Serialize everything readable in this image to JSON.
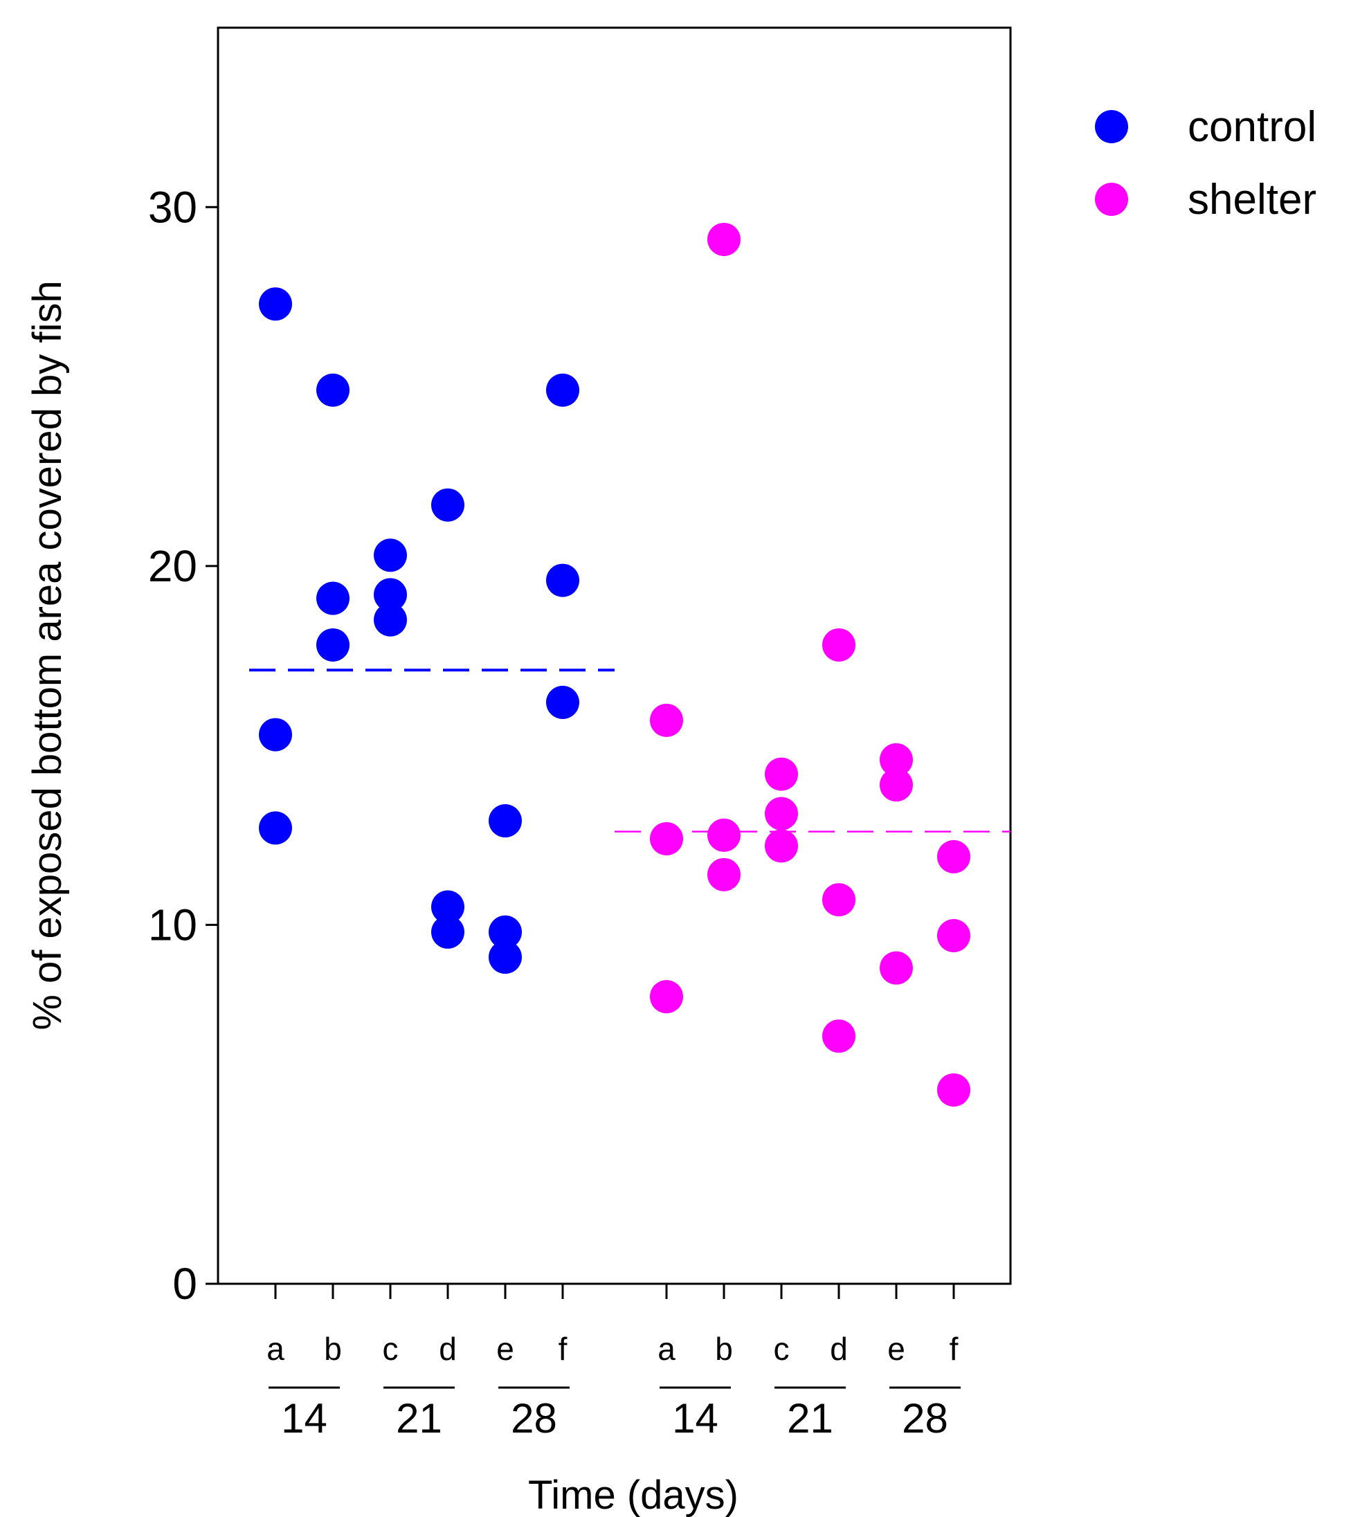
{
  "chart_data": {
    "type": "scatter",
    "ylabel": "% of exposed bottom area covered by fish",
    "xlabel": "Time (days)",
    "ylim": [
      0,
      35
    ],
    "yticks": [
      0,
      10,
      20,
      30
    ],
    "grid": false,
    "legend": {
      "placement": "top-right, outside plot",
      "entries": [
        {
          "label": "control",
          "color": "#0000ff"
        },
        {
          "label": "shelter",
          "color": "#ff00ff"
        }
      ]
    },
    "categories": [
      {
        "label": "a",
        "treatment": "control"
      },
      {
        "label": "b",
        "treatment": "control"
      },
      {
        "label": "c",
        "treatment": "control"
      },
      {
        "label": "d",
        "treatment": "control"
      },
      {
        "label": "e",
        "treatment": "control"
      },
      {
        "label": "f",
        "treatment": "control"
      },
      {
        "label": "a",
        "treatment": "shelter"
      },
      {
        "label": "b",
        "treatment": "shelter"
      },
      {
        "label": "c",
        "treatment": "shelter"
      },
      {
        "label": "d",
        "treatment": "shelter"
      },
      {
        "label": "e",
        "treatment": "shelter"
      },
      {
        "label": "f",
        "treatment": "shelter"
      }
    ],
    "time_groups": [
      {
        "label": "14",
        "category_indices": [
          0,
          1
        ]
      },
      {
        "label": "21",
        "category_indices": [
          2,
          3
        ]
      },
      {
        "label": "28",
        "category_indices": [
          4,
          5
        ]
      },
      {
        "label": "14",
        "category_indices": [
          6,
          7
        ]
      },
      {
        "label": "21",
        "category_indices": [
          8,
          9
        ]
      },
      {
        "label": "28",
        "category_indices": [
          10,
          11
        ]
      }
    ],
    "series": [
      {
        "name": "control",
        "color": "#0000ff",
        "mean": 17.1,
        "points": [
          {
            "category": 0,
            "value": 27.3
          },
          {
            "category": 0,
            "value": 15.3
          },
          {
            "category": 0,
            "value": 12.7
          },
          {
            "category": 1,
            "value": 24.9
          },
          {
            "category": 1,
            "value": 19.1
          },
          {
            "category": 1,
            "value": 17.8
          },
          {
            "category": 2,
            "value": 20.3
          },
          {
            "category": 2,
            "value": 19.2
          },
          {
            "category": 2,
            "value": 18.5
          },
          {
            "category": 3,
            "value": 21.7
          },
          {
            "category": 3,
            "value": 10.5
          },
          {
            "category": 3,
            "value": 9.8
          },
          {
            "category": 4,
            "value": 12.9
          },
          {
            "category": 4,
            "value": 9.8
          },
          {
            "category": 4,
            "value": 9.1
          },
          {
            "category": 5,
            "value": 24.9
          },
          {
            "category": 5,
            "value": 19.6
          },
          {
            "category": 5,
            "value": 16.2
          }
        ]
      },
      {
        "name": "shelter",
        "color": "#ff00ff",
        "mean": 12.6,
        "points": [
          {
            "category": 6,
            "value": 15.7
          },
          {
            "category": 6,
            "value": 12.4
          },
          {
            "category": 6,
            "value": 8.0
          },
          {
            "category": 7,
            "value": 29.1
          },
          {
            "category": 7,
            "value": 12.5
          },
          {
            "category": 7,
            "value": 11.4
          },
          {
            "category": 8,
            "value": 14.2
          },
          {
            "category": 8,
            "value": 13.1
          },
          {
            "category": 8,
            "value": 12.2
          },
          {
            "category": 9,
            "value": 17.8
          },
          {
            "category": 9,
            "value": 10.7
          },
          {
            "category": 9,
            "value": 6.9
          },
          {
            "category": 10,
            "value": 14.6
          },
          {
            "category": 10,
            "value": 13.9
          },
          {
            "category": 10,
            "value": 8.8
          },
          {
            "category": 11,
            "value": 11.9
          },
          {
            "category": 11,
            "value": 9.7
          },
          {
            "category": 11,
            "value": 5.4
          }
        ]
      }
    ]
  }
}
